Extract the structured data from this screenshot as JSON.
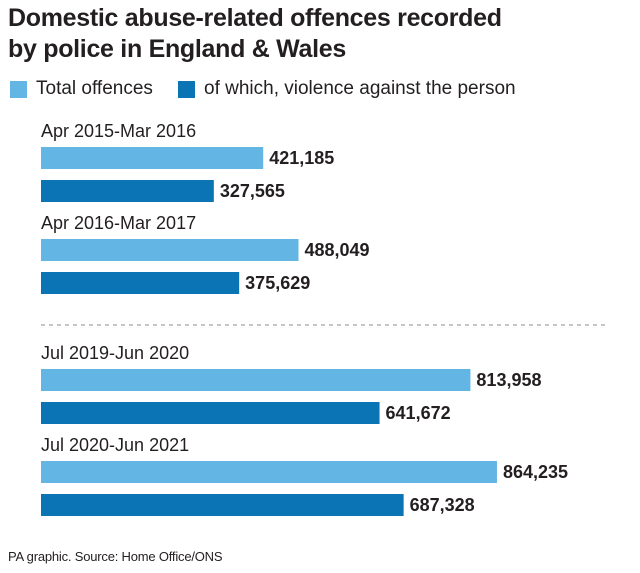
{
  "title_line1": "Domestic abuse-related offences recorded",
  "title_line2": "by police in England & Wales",
  "source": "PA graphic. Source: Home Office/ONS",
  "colors": {
    "total": "#63b6e3",
    "violence": "#0a74b5",
    "divider": "#b3b3b3",
    "text": "#231f20"
  },
  "chart_data": {
    "type": "bar",
    "orientation": "horizontal",
    "title": "Domestic abuse-related offences recorded by police in England & Wales",
    "categories": [
      "Apr 2015-Mar 2016",
      "Apr 2016-Mar 2017",
      "Jul 2019-Jun 2020",
      "Jul 2020-Jun 2021"
    ],
    "series": [
      {
        "name": "Total offences",
        "values": [
          421185,
          488049,
          813958,
          864235
        ],
        "color": "#63b6e3"
      },
      {
        "name": "of which, violence against the person",
        "values": [
          327565,
          375629,
          641672,
          687328
        ],
        "color": "#0a74b5"
      }
    ],
    "value_labels": [
      [
        "421,185",
        "488,049",
        "813,958",
        "864,235"
      ],
      [
        "327,565",
        "375,629",
        "641,672",
        "687,328"
      ]
    ],
    "legend": "top-left",
    "grid": false,
    "axis_visible": false,
    "xlim": [
      0,
      870000
    ]
  }
}
